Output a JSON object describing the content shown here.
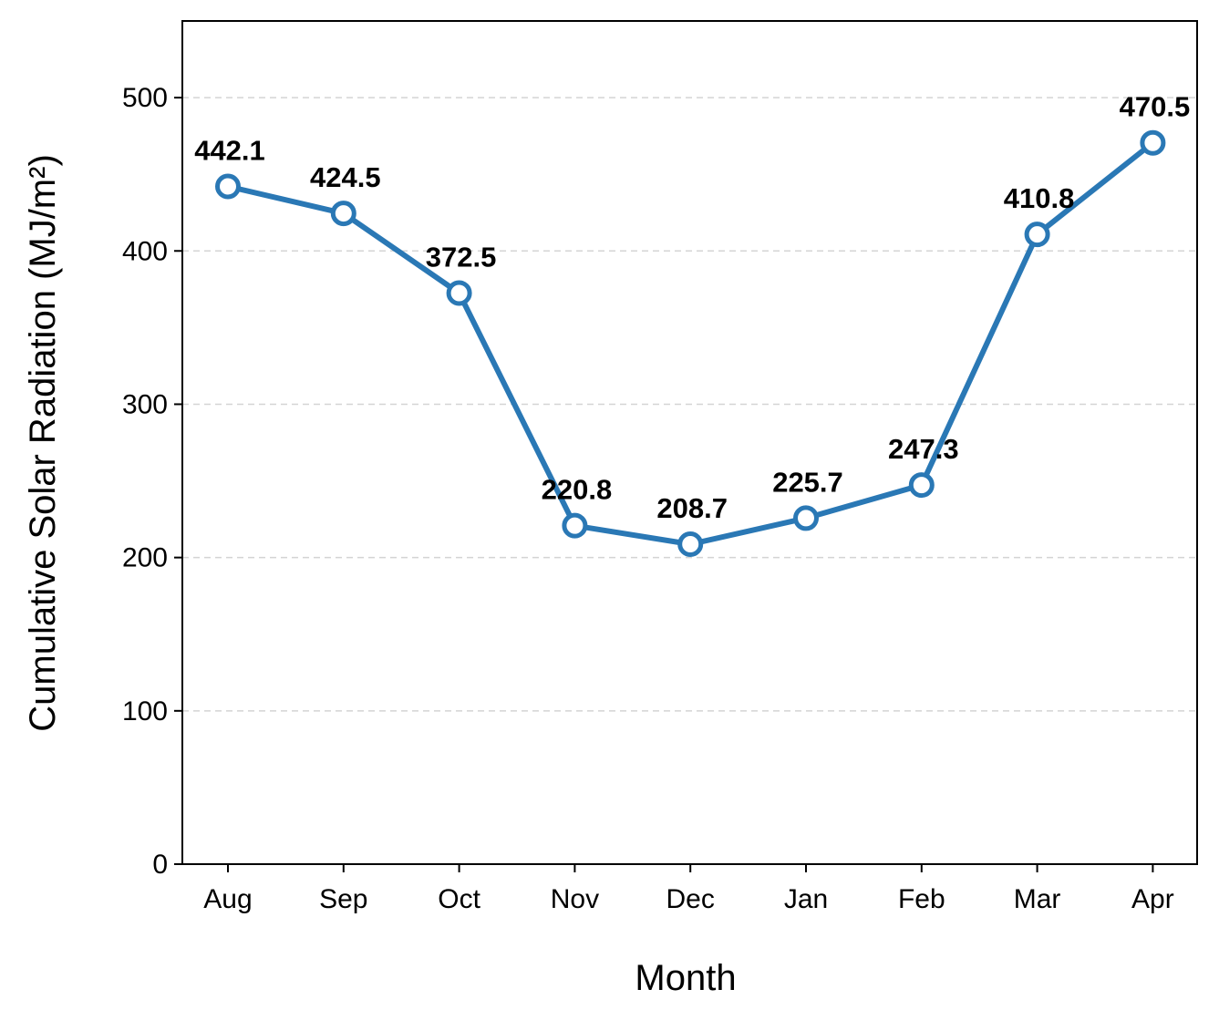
{
  "chart_data": {
    "type": "line",
    "title": "",
    "xlabel": "Month",
    "ylabel": "Cumulative Solar Radiation (MJ/m²)",
    "categories": [
      "Aug",
      "Sep",
      "Oct",
      "Nov",
      "Dec",
      "Jan",
      "Feb",
      "Mar",
      "Apr"
    ],
    "series": [
      {
        "values": [
          442.1,
          424.5,
          372.5,
          220.8,
          208.7,
          225.7,
          247.3,
          410.8,
          470.5
        ],
        "data_labels": [
          "442.1",
          "424.5",
          "372.5",
          "220.8",
          "208.7",
          "225.7",
          "247.3",
          "410.8",
          "470.5"
        ],
        "color": "#2a78b5",
        "marker": "open-circle"
      }
    ],
    "ylim": [
      0,
      550
    ],
    "yticks": [
      0,
      100,
      200,
      300,
      400,
      500
    ],
    "ytick_labels": [
      "0",
      "100",
      "200",
      "300",
      "400",
      "500"
    ],
    "grid": {
      "y": true,
      "x": false,
      "style": "dashed",
      "color": "#d4d4d4"
    },
    "legend": "none"
  }
}
